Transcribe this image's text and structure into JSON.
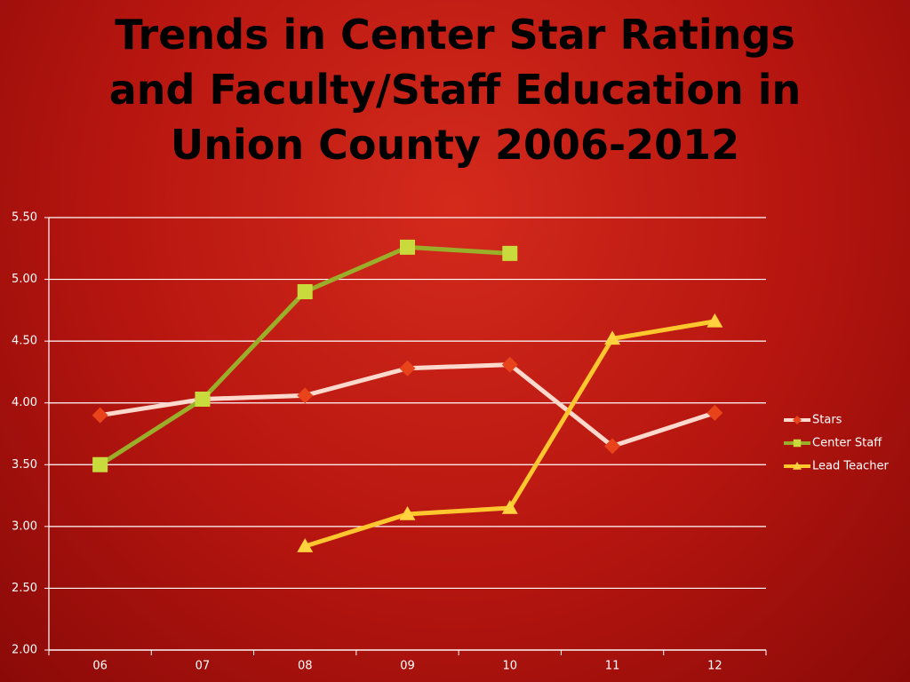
{
  "chart_data": {
    "type": "line",
    "title": "Trends in Center Star Ratings\nand Faculty/Staff Education in\nUnion County 2006-2012",
    "categories": [
      "06",
      "07",
      "08",
      "09",
      "10",
      "11",
      "12"
    ],
    "series": [
      {
        "name": "Stars",
        "color": "#fcd9cc",
        "marker": "diamond",
        "marker_color": "#e8431a",
        "values": [
          3.9,
          4.03,
          4.06,
          4.28,
          4.31,
          3.65,
          3.92
        ]
      },
      {
        "name": "Center Staff",
        "color": "#9aae2a",
        "marker": "square",
        "marker_color": "#c8da3c",
        "values": [
          3.5,
          4.03,
          4.9,
          5.26,
          5.21,
          null,
          null
        ]
      },
      {
        "name": "Lead Teacher",
        "color": "#ffc62e",
        "marker": "triangle",
        "marker_color": "#ffd23e",
        "values": [
          null,
          null,
          2.84,
          3.1,
          3.15,
          4.52,
          4.66
        ]
      }
    ],
    "ylim": [
      2.0,
      5.5
    ],
    "yticks": [
      {
        "value": 2.0,
        "label": "2.00"
      },
      {
        "value": 2.5,
        "label": "2.50"
      },
      {
        "value": 3.0,
        "label": "3.00"
      },
      {
        "value": 3.5,
        "label": "3.50"
      },
      {
        "value": 4.0,
        "label": "4.00"
      },
      {
        "value": 4.5,
        "label": "4.50"
      },
      {
        "value": 5.0,
        "label": "5.00"
      },
      {
        "value": 5.5,
        "label": "5.50"
      }
    ],
    "grid": true,
    "legend": "right"
  }
}
